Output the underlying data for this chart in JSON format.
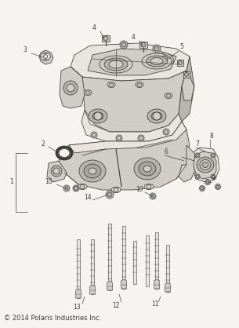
{
  "bg_color": "#f5f4f1",
  "line_color": "#3a3a3a",
  "copyright": "© 2014 Polaris Industries Inc.",
  "copyright_fontsize": 6.0,
  "fig_width": 3.05,
  "fig_height": 4.18,
  "dpi": 100,
  "fill_light": "#e8e5e0",
  "fill_mid": "#d0cdc8",
  "fill_dark": "#b8b5b0",
  "fill_shadow": "#a8a5a0"
}
